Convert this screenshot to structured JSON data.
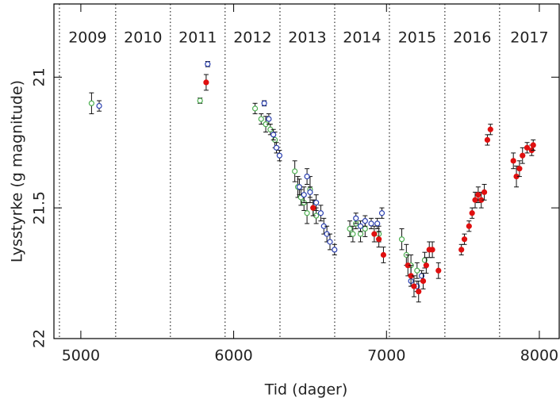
{
  "chart_data": {
    "type": "scatter",
    "xlabel": "Tid (dager)",
    "ylabel": "Lysstyrke (g magnitude)",
    "xlim": [
      4824,
      8130
    ],
    "ylim": [
      22,
      20.72
    ],
    "xticks": [
      5000,
      6000,
      7000,
      8000
    ],
    "yticks": [
      21,
      21.5,
      22
    ],
    "year_lines": [
      4860,
      5228,
      5586,
      5944,
      6303,
      6661,
      7019,
      7382,
      7740
    ],
    "year_labels": [
      "2009",
      "2010",
      "2011",
      "2012",
      "2013",
      "2014",
      "2015",
      "2016",
      "2017"
    ],
    "series": [
      {
        "color": "#4caf50",
        "marker": "open",
        "x": [
          5070,
          5780,
          6140,
          6180,
          6210,
          6240,
          6270,
          6400,
          6420,
          6440,
          6460,
          6480,
          6500,
          6520,
          6540,
          6760,
          6780,
          6800,
          6830,
          6860,
          6950,
          7100,
          7130,
          7160,
          7200,
          7250
        ],
        "values": [
          21.1,
          21.09,
          21.12,
          21.16,
          21.18,
          21.2,
          21.24,
          21.36,
          21.42,
          21.46,
          21.48,
          21.52,
          21.43,
          21.5,
          21.53,
          21.58,
          21.6,
          21.56,
          21.6,
          21.58,
          21.6,
          21.62,
          21.68,
          21.72,
          21.74,
          21.7
        ],
        "errors": [
          0.04,
          0.01,
          0.02,
          0.02,
          0.03,
          0.02,
          0.03,
          0.04,
          0.04,
          0.03,
          0.03,
          0.04,
          0.05,
          0.03,
          0.03,
          0.03,
          0.03,
          0.02,
          0.03,
          0.03,
          0.03,
          0.04,
          0.04,
          0.04,
          0.03,
          0.03
        ]
      },
      {
        "color": "#2a3fb0",
        "marker": "open",
        "x": [
          5120,
          5830,
          6200,
          6230,
          6260,
          6280,
          6300,
          6430,
          6460,
          6480,
          6500,
          6540,
          6570,
          6590,
          6610,
          6630,
          6660,
          6800,
          6830,
          6860,
          6900,
          6940,
          6970,
          7160,
          7200,
          7230
        ],
        "values": [
          21.11,
          20.95,
          21.1,
          21.16,
          21.22,
          21.27,
          21.3,
          21.42,
          21.45,
          21.38,
          21.44,
          21.48,
          21.52,
          21.57,
          21.6,
          21.63,
          21.66,
          21.54,
          21.57,
          21.55,
          21.56,
          21.56,
          21.52,
          21.78,
          21.8,
          21.76
        ],
        "errors": [
          0.02,
          0.01,
          0.01,
          0.02,
          0.02,
          0.02,
          0.02,
          0.03,
          0.03,
          0.03,
          0.02,
          0.03,
          0.03,
          0.03,
          0.03,
          0.03,
          0.02,
          0.02,
          0.02,
          0.02,
          0.02,
          0.02,
          0.02,
          0.02,
          0.02,
          0.02
        ]
      },
      {
        "color": "#e01010",
        "marker": "filled",
        "x": [
          5820,
          6520,
          6920,
          6950,
          6980,
          7140,
          7160,
          7180,
          7210,
          7240,
          7260,
          7280,
          7300,
          7340,
          7490,
          7510,
          7540,
          7560,
          7580,
          7600,
          7620,
          7640,
          7660,
          7680,
          7830,
          7850,
          7870,
          7890,
          7920,
          7950,
          7960
        ],
        "values": [
          21.02,
          21.5,
          21.6,
          21.62,
          21.68,
          21.72,
          21.76,
          21.8,
          21.82,
          21.78,
          21.72,
          21.66,
          21.66,
          21.74,
          21.66,
          21.62,
          21.57,
          21.52,
          21.47,
          21.45,
          21.47,
          21.44,
          21.24,
          21.2,
          21.32,
          21.38,
          21.35,
          21.3,
          21.27,
          21.28,
          21.26
        ],
        "errors": [
          0.03,
          0.03,
          0.03,
          0.03,
          0.03,
          0.04,
          0.04,
          0.04,
          0.04,
          0.03,
          0.03,
          0.03,
          0.03,
          0.03,
          0.02,
          0.02,
          0.02,
          0.02,
          0.03,
          0.03,
          0.03,
          0.03,
          0.02,
          0.02,
          0.03,
          0.04,
          0.03,
          0.03,
          0.02,
          0.02,
          0.02
        ]
      }
    ]
  }
}
